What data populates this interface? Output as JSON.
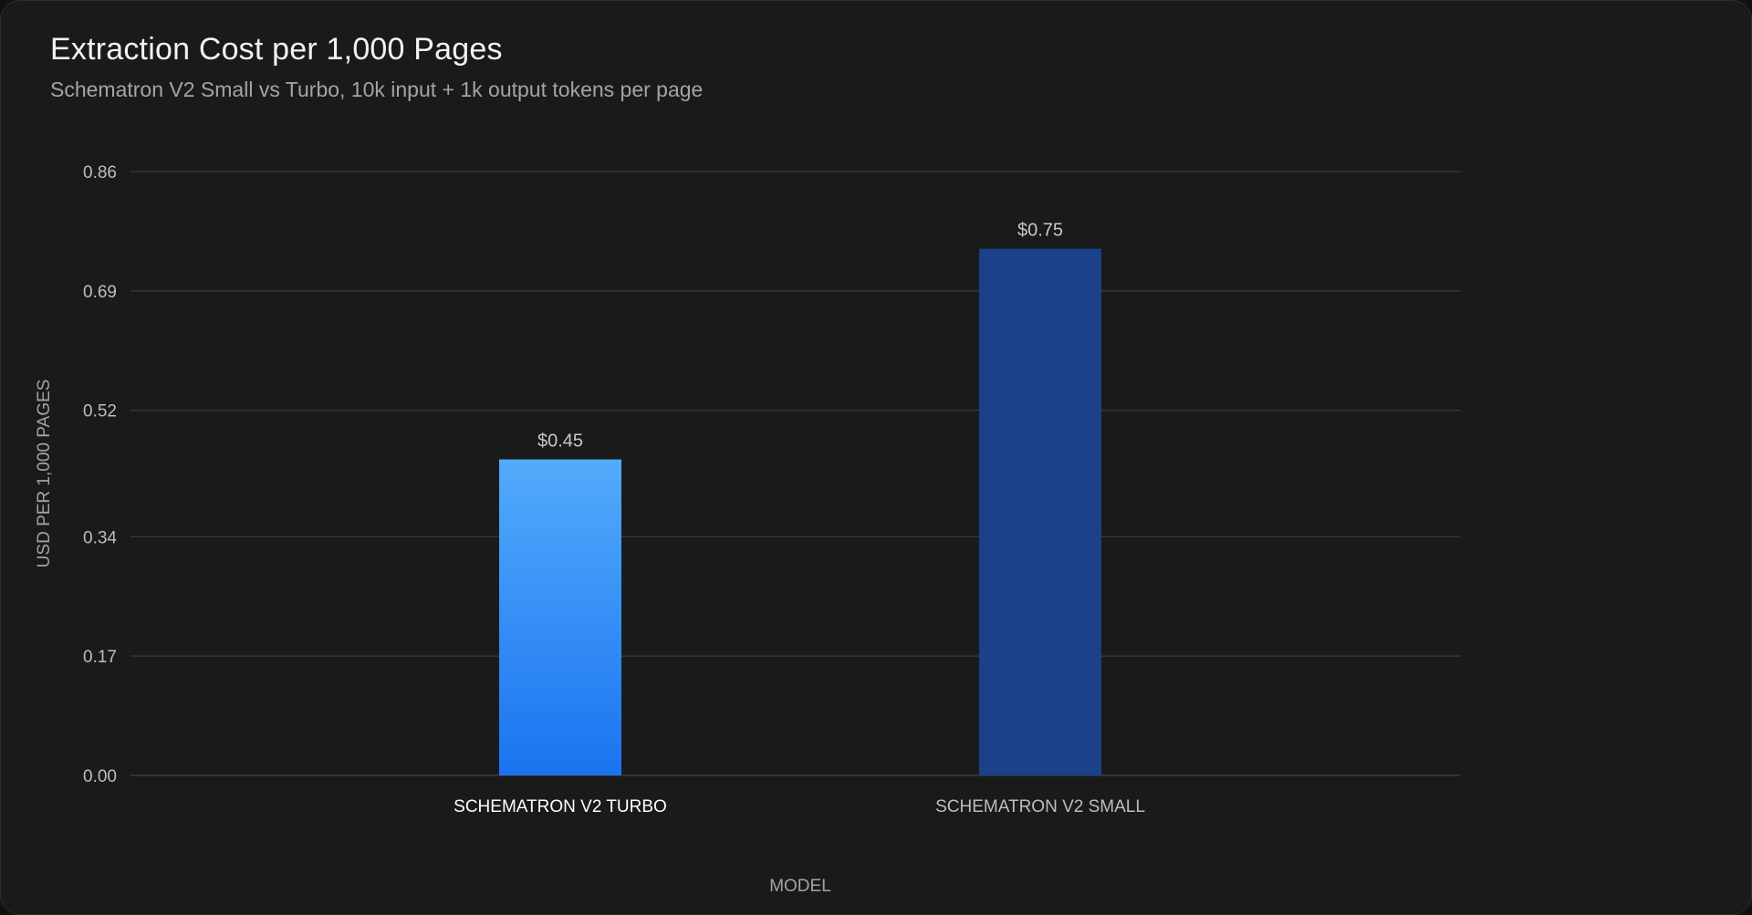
{
  "chart_data": {
    "type": "bar",
    "title": "Extraction Cost per 1,000 Pages",
    "subtitle": "Schematron V2 Small vs Turbo, 10k input + 1k output tokens per page",
    "xlabel": "MODEL",
    "ylabel": "USD PER 1,000 PAGES",
    "categories": [
      "SCHEMATRON V2 TURBO",
      "SCHEMATRON V2 SMALL"
    ],
    "values": [
      0.45,
      0.75
    ],
    "value_labels": [
      "$0.45",
      "$0.75"
    ],
    "ylim": [
      0,
      0.86
    ],
    "yticks": [
      "0.00",
      "0.17",
      "0.34",
      "0.52",
      "0.69",
      "0.86"
    ],
    "grid": true,
    "legend": "none",
    "colors": {
      "turbo_top": "#52abfb",
      "turbo_bottom": "#1a74f0",
      "small": "#1a4189",
      "grid": "#3a3a3a",
      "highlighted_category_label": "#ffffff",
      "category_label": "#bdbdbd"
    },
    "highlighted_category": 0
  }
}
